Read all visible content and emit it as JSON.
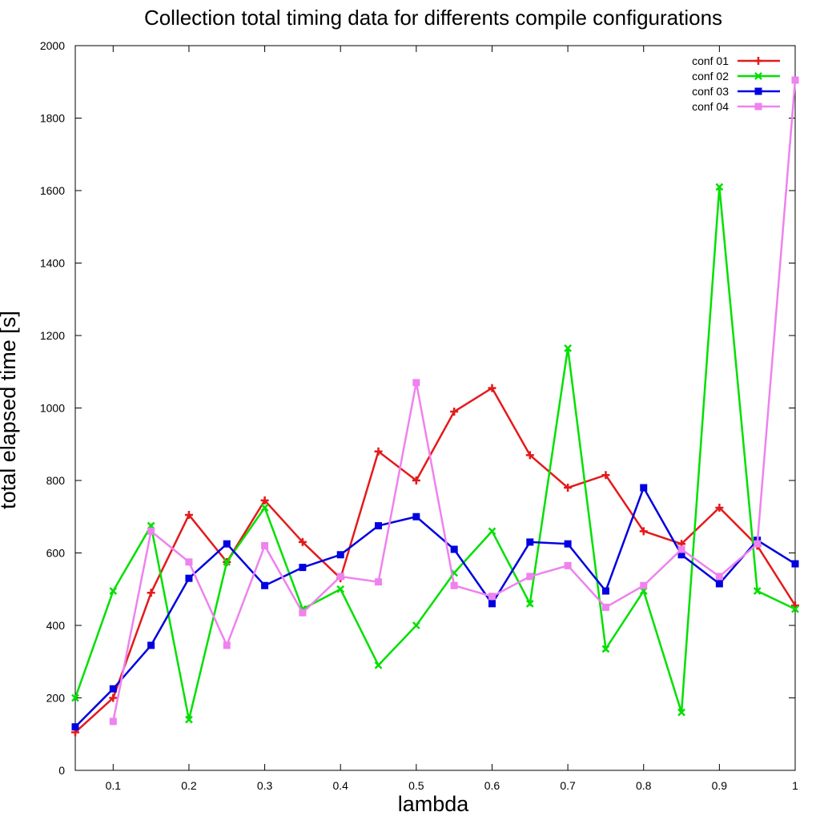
{
  "chart_data": {
    "type": "line",
    "title": "Collection total timing data for differents compile configurations",
    "xlabel": "lambda",
    "ylabel": "total elapsed time [s]",
    "xlim": [
      0.05,
      1
    ],
    "ylim": [
      0,
      2000
    ],
    "x_ticks": [
      "0.1",
      "0.2",
      "0.3",
      "0.4",
      "0.5",
      "0.6",
      "0.7",
      "0.8",
      "0.9",
      "1"
    ],
    "y_ticks": [
      "0",
      "200",
      "400",
      "600",
      "800",
      "1000",
      "1200",
      "1400",
      "1600",
      "1800",
      "2000"
    ],
    "grid": false,
    "legend_position": "top-right",
    "series": [
      {
        "name": "conf 01",
        "color": "#e41a1c",
        "marker": "plus",
        "x": [
          0.05,
          0.1,
          0.15,
          0.2,
          0.25,
          0.3,
          0.35,
          0.4,
          0.45,
          0.5,
          0.55,
          0.6,
          0.65,
          0.7,
          0.75,
          0.8,
          0.85,
          0.9,
          0.95,
          1.0
        ],
        "values": [
          105,
          200,
          490,
          705,
          575,
          745,
          630,
          530,
          880,
          800,
          990,
          1055,
          870,
          780,
          815,
          660,
          625,
          725,
          620,
          455
        ]
      },
      {
        "name": "conf 02",
        "color": "#00e000",
        "marker": "cross",
        "x": [
          0.05,
          0.1,
          0.15,
          0.2,
          0.25,
          0.3,
          0.35,
          0.4,
          0.45,
          0.5,
          0.55,
          0.6,
          0.65,
          0.7,
          0.75,
          0.8,
          0.85,
          0.9,
          0.95,
          1.0
        ],
        "values": [
          200,
          495,
          675,
          140,
          575,
          725,
          445,
          500,
          290,
          400,
          545,
          660,
          460,
          1165,
          335,
          495,
          160,
          1610,
          495,
          445
        ]
      },
      {
        "name": "conf 03",
        "color": "#0000e0",
        "marker": "square",
        "x": [
          0.05,
          0.1,
          0.15,
          0.2,
          0.25,
          0.3,
          0.35,
          0.4,
          0.45,
          0.5,
          0.55,
          0.6,
          0.65,
          0.7,
          0.75,
          0.8,
          0.85,
          0.9,
          0.95,
          1.0
        ],
        "values": [
          120,
          225,
          345,
          530,
          625,
          510,
          560,
          595,
          675,
          700,
          610,
          460,
          630,
          625,
          495,
          780,
          595,
          515,
          635,
          570
        ]
      },
      {
        "name": "conf 04",
        "color": "#ee82ee",
        "marker": "square",
        "x": [
          0.1,
          0.15,
          0.2,
          0.25,
          0.3,
          0.35,
          0.4,
          0.45,
          0.5,
          0.55,
          0.6,
          0.65,
          0.7,
          0.75,
          0.8,
          0.85,
          0.9,
          0.95,
          1.0
        ],
        "values": [
          135,
          660,
          575,
          345,
          620,
          435,
          535,
          520,
          1070,
          510,
          480,
          535,
          565,
          450,
          510,
          610,
          535,
          625,
          1905
        ]
      }
    ]
  }
}
